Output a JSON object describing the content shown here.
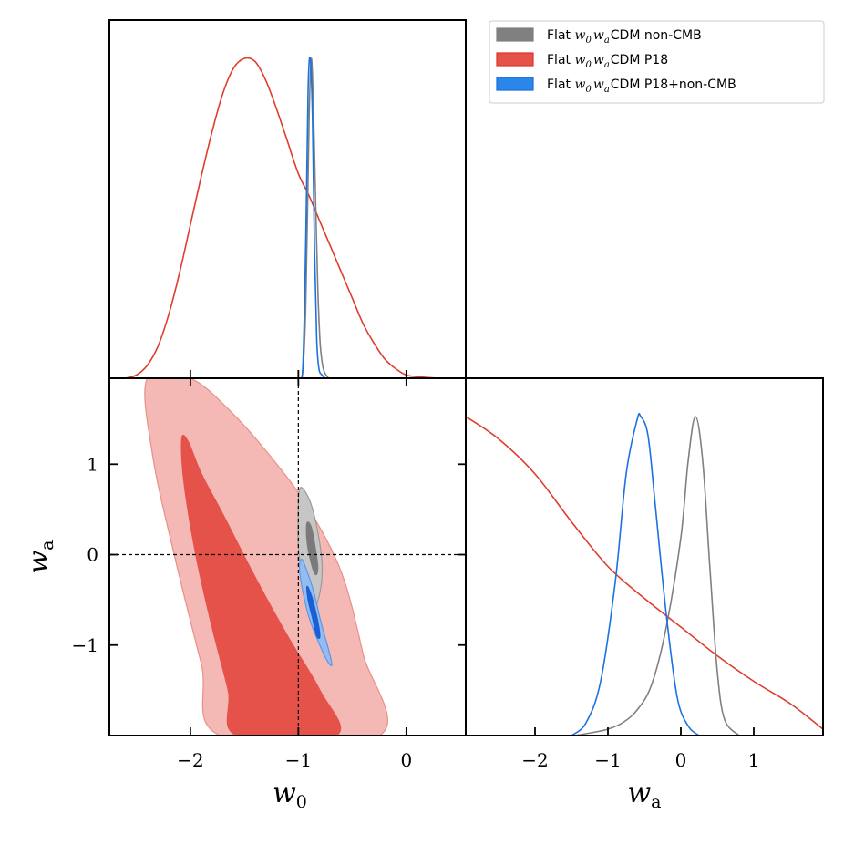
{
  "chart_data": [
    {
      "panel": "top-left",
      "type": "line",
      "title": "",
      "xlabel": "",
      "ylabel": "",
      "xlim": [
        -2.75,
        0.55
      ],
      "ylim": [
        0,
        1.12
      ],
      "x_ticks": [
        -2,
        -1,
        0
      ],
      "series": [
        {
          "name": "Flat w0waCDM P18",
          "color": "#e03c2c",
          "x": [
            -2.6,
            -2.5,
            -2.4,
            -2.3,
            -2.2,
            -2.1,
            -2.0,
            -1.9,
            -1.8,
            -1.7,
            -1.6,
            -1.5,
            -1.4,
            -1.3,
            -1.2,
            -1.1,
            -1.0,
            -0.9,
            -0.8,
            -0.7,
            -0.6,
            -0.5,
            -0.4,
            -0.3,
            -0.2,
            -0.1,
            0.0,
            0.1,
            0.2,
            0.3
          ],
          "y": [
            0.0,
            0.01,
            0.04,
            0.1,
            0.2,
            0.33,
            0.48,
            0.63,
            0.77,
            0.89,
            0.97,
            1.0,
            0.99,
            0.93,
            0.84,
            0.74,
            0.64,
            0.57,
            0.49,
            0.41,
            0.33,
            0.25,
            0.17,
            0.11,
            0.06,
            0.03,
            0.01,
            0.005,
            0.002,
            0.0
          ]
        },
        {
          "name": "Flat w0waCDM non-CMB",
          "color": "#808080",
          "x": [
            -1.0,
            -0.96,
            -0.93,
            -0.9,
            -0.88,
            -0.86,
            -0.84,
            -0.82,
            -0.8,
            -0.78,
            -0.76,
            -0.72
          ],
          "y": [
            0.0,
            0.02,
            0.25,
            0.82,
            1.0,
            0.84,
            0.55,
            0.28,
            0.12,
            0.05,
            0.02,
            0.0
          ]
        },
        {
          "name": "Flat w0waCDM P18+non-CMB",
          "color": "#1a73e0",
          "x": [
            -1.0,
            -0.96,
            -0.93,
            -0.91,
            -0.89,
            -0.87,
            -0.85,
            -0.83,
            -0.81,
            -0.78,
            -0.75,
            -0.72
          ],
          "y": [
            0.0,
            0.03,
            0.45,
            0.9,
            1.0,
            0.82,
            0.4,
            0.12,
            0.03,
            0.01,
            0.0,
            0.0
          ]
        }
      ]
    },
    {
      "panel": "bottom-left",
      "type": "contour",
      "title": "",
      "xlabel": "w0",
      "ylabel": "wa",
      "xlim": [
        -2.75,
        0.55
      ],
      "ylim": [
        -2.0,
        1.95
      ],
      "x_ticks": [
        -2,
        -1,
        0
      ],
      "y_ticks": [
        1,
        0,
        -1
      ],
      "reference_lines": {
        "w0": -1,
        "wa": 0
      },
      "contours": [
        {
          "name": "Flat w0waCDM P18 (95%)",
          "color": "#f4b9b4",
          "stroke": "#e98f87",
          "points": [
            [
              -2.4,
              1.95
            ],
            [
              -2.0,
              1.95
            ],
            [
              -1.6,
              1.55
            ],
            [
              -1.2,
              1.0
            ],
            [
              -0.9,
              0.5
            ],
            [
              -0.6,
              -0.2
            ],
            [
              -0.4,
              -1.1
            ],
            [
              -0.25,
              -2.0
            ],
            [
              -1.72,
              -2.0
            ],
            [
              -1.9,
              -1.2
            ],
            [
              -2.15,
              0.0
            ],
            [
              -2.35,
              1.1
            ]
          ]
        },
        {
          "name": "Flat w0waCDM P18 (68%)",
          "color": "#e4524a",
          "stroke": "#e4524a",
          "points": [
            [
              -2.08,
              1.28
            ],
            [
              -2.02,
              1.25
            ],
            [
              -1.9,
              0.9
            ],
            [
              -1.7,
              0.45
            ],
            [
              -1.4,
              -0.25
            ],
            [
              -1.1,
              -0.9
            ],
            [
              -0.8,
              -1.5
            ],
            [
              -0.65,
              -2.0
            ],
            [
              -1.57,
              -2.0
            ],
            [
              -1.65,
              -1.5
            ],
            [
              -1.8,
              -0.8
            ],
            [
              -1.95,
              0.0
            ],
            [
              -2.06,
              0.8
            ]
          ]
        },
        {
          "name": "Flat w0waCDM non-CMB (95%)",
          "color": "#c6c6c6",
          "stroke": "#9a9a9a",
          "points": [
            [
              -0.99,
              0.72
            ],
            [
              -0.95,
              0.72
            ],
            [
              -0.88,
              0.55
            ],
            [
              -0.82,
              0.25
            ],
            [
              -0.78,
              -0.1
            ],
            [
              -0.79,
              -0.35
            ],
            [
              -0.83,
              -0.55
            ],
            [
              -0.86,
              -0.6
            ],
            [
              -0.92,
              -0.45
            ],
            [
              -0.97,
              -0.2
            ],
            [
              -1.0,
              0.1
            ],
            [
              -1.0,
              0.5
            ]
          ]
        },
        {
          "name": "Flat w0waCDM non-CMB (68%)",
          "color": "#7a7a7a",
          "stroke": "#7a7a7a",
          "points": [
            [
              -0.92,
              0.35
            ],
            [
              -0.88,
              0.3
            ],
            [
              -0.84,
              0.05
            ],
            [
              -0.82,
              -0.15
            ],
            [
              -0.84,
              -0.22
            ],
            [
              -0.88,
              -0.1
            ],
            [
              -0.92,
              0.15
            ]
          ]
        },
        {
          "name": "Flat w0waCDM P18+non-CMB (95%)",
          "color": "#93bdf0",
          "stroke": "#5b96e6",
          "points": [
            [
              -0.97,
              -0.05
            ],
            [
              -0.93,
              -0.15
            ],
            [
              -0.86,
              -0.4
            ],
            [
              -0.79,
              -0.75
            ],
            [
              -0.72,
              -1.05
            ],
            [
              -0.69,
              -1.22
            ],
            [
              -0.73,
              -1.18
            ],
            [
              -0.82,
              -0.95
            ],
            [
              -0.9,
              -0.7
            ],
            [
              -0.96,
              -0.4
            ],
            [
              -0.99,
              -0.15
            ]
          ]
        },
        {
          "name": "Flat w0waCDM P18+non-CMB (68%)",
          "color": "#1a5fd6",
          "stroke": "#1a5fd6",
          "points": [
            [
              -0.92,
              -0.35
            ],
            [
              -0.88,
              -0.45
            ],
            [
              -0.83,
              -0.68
            ],
            [
              -0.8,
              -0.9
            ],
            [
              -0.83,
              -0.9
            ],
            [
              -0.87,
              -0.7
            ],
            [
              -0.91,
              -0.5
            ]
          ]
        }
      ]
    },
    {
      "panel": "bottom-right",
      "type": "line",
      "title": "",
      "xlabel": "wa",
      "ylabel": "",
      "xlim": [
        -2.95,
        1.95
      ],
      "ylim": [
        0,
        1.12
      ],
      "x_ticks": [
        -2,
        -1,
        0,
        1
      ],
      "series": [
        {
          "name": "Flat w0waCDM P18",
          "color": "#e03c2c",
          "x": [
            -2.95,
            -2.5,
            -2.0,
            -1.5,
            -1.0,
            -0.5,
            0.0,
            0.5,
            1.0,
            1.5,
            1.95
          ],
          "y": [
            1.0,
            0.93,
            0.82,
            0.67,
            0.53,
            0.43,
            0.34,
            0.25,
            0.17,
            0.1,
            0.02
          ]
        },
        {
          "name": "Flat w0waCDM non-CMB",
          "color": "#808080",
          "x": [
            -1.45,
            -1.2,
            -1.0,
            -0.8,
            -0.6,
            -0.4,
            -0.2,
            0.0,
            0.1,
            0.2,
            0.3,
            0.4,
            0.5,
            0.6,
            0.8
          ],
          "y": [
            0.0,
            0.01,
            0.02,
            0.04,
            0.08,
            0.16,
            0.34,
            0.62,
            0.86,
            1.0,
            0.86,
            0.52,
            0.2,
            0.05,
            0.0
          ]
        },
        {
          "name": "Flat w0waCDM P18+non-CMB",
          "color": "#1a73e0",
          "x": [
            -1.5,
            -1.3,
            -1.1,
            -0.9,
            -0.75,
            -0.6,
            -0.55,
            -0.45,
            -0.35,
            -0.2,
            -0.05,
            0.1,
            0.25
          ],
          "y": [
            0.0,
            0.04,
            0.17,
            0.48,
            0.82,
            0.99,
            1.0,
            0.94,
            0.72,
            0.38,
            0.12,
            0.03,
            0.0
          ]
        }
      ]
    }
  ],
  "legend": {
    "position": "top-right",
    "entries": [
      {
        "prefix": "Flat ",
        "math": "w",
        "sub0": "0",
        "math2": "w",
        "sub1": "a",
        "suffix": "CDM non-CMB",
        "color": "#808080",
        "edge": "#808080"
      },
      {
        "prefix": "Flat ",
        "math": "w",
        "sub0": "0",
        "math2": "w",
        "sub1": "a",
        "suffix": "CDM P18",
        "color": "#e4524a",
        "edge": "#d9362b"
      },
      {
        "prefix": "Flat ",
        "math": "w",
        "sub0": "0",
        "math2": "w",
        "sub1": "a",
        "suffix": "CDM P18+non-CMB",
        "color": "#2b86e9",
        "edge": "#1a6fd8"
      }
    ]
  },
  "axes_labels": {
    "x_left": {
      "base": "w",
      "sub": "0"
    },
    "x_right": {
      "base": "w",
      "sub": "a"
    },
    "y_left": {
      "base": "w",
      "sub": "a"
    }
  }
}
